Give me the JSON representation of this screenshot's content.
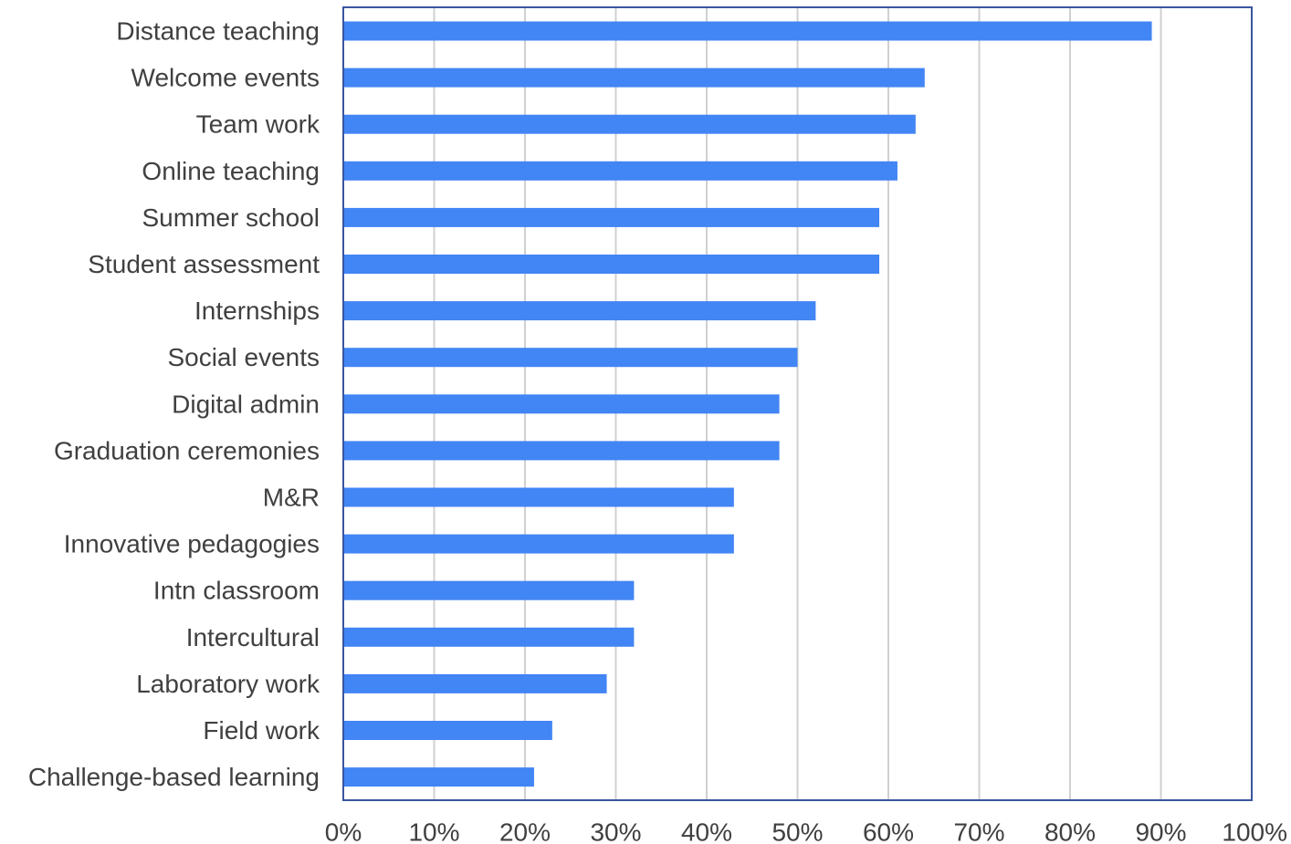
{
  "chart_data": {
    "type": "bar",
    "orientation": "horizontal",
    "title": "",
    "xlabel": "",
    "ylabel": "",
    "categories": [
      "Distance teaching",
      "Welcome events",
      "Team work",
      "Online teaching",
      "Summer school",
      "Student assessment",
      "Internships",
      "Social events",
      "Digital admin",
      "Graduation ceremonies",
      "M&R",
      "Innovative pedagogies",
      "Intn classroom",
      "Intercultural",
      "Laboratory work",
      "Field work",
      "Challenge-based learning"
    ],
    "values": [
      89,
      64,
      63,
      61,
      59,
      59,
      52,
      50,
      48,
      48,
      43,
      43,
      32,
      32,
      29,
      23,
      21
    ],
    "xlim": [
      0,
      100
    ],
    "x_ticks": [
      "0%",
      "10%",
      "20%",
      "30%",
      "40%",
      "50%",
      "60%",
      "70%",
      "80%",
      "90%",
      "100%"
    ],
    "grid": "vertical",
    "legend": "none",
    "colors": {
      "bar": "#4285f4",
      "gridline": "#d0d0d0",
      "frame": "#3a55a0",
      "label_text": "#404040"
    }
  }
}
